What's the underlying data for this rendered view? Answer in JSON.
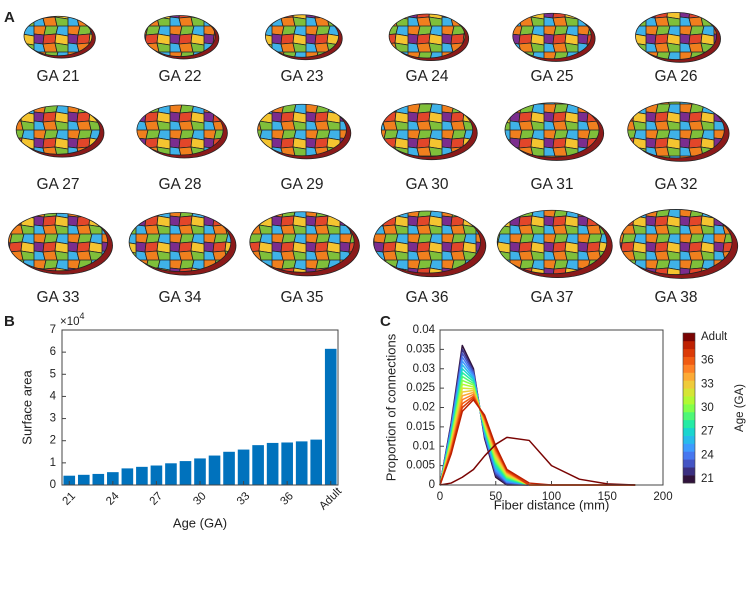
{
  "panel_a": {
    "label": "A",
    "captions": [
      "GA 21",
      "GA 22",
      "GA 23",
      "GA 24",
      "GA 25",
      "GA 26",
      "GA 27",
      "GA 28",
      "GA 29",
      "GA 30",
      "GA 31",
      "GA 32",
      "GA 33",
      "GA 34",
      "GA 35",
      "GA 36",
      "GA 37",
      "GA 38"
    ]
  },
  "chart_data": [
    {
      "type": "bar",
      "panel_label": "B",
      "x_label": "Age (GA)",
      "y_label": "Surface area",
      "y_multiplier": {
        "base": "×10",
        "exponent": "4"
      },
      "categories": [
        "21",
        null,
        null,
        "24",
        null,
        null,
        "27",
        null,
        null,
        "30",
        null,
        null,
        "33",
        null,
        null,
        "36",
        null,
        null,
        "Adult"
      ],
      "values": [
        0.42,
        0.46,
        0.5,
        0.58,
        0.75,
        0.82,
        0.88,
        0.98,
        1.08,
        1.2,
        1.33,
        1.5,
        1.6,
        1.8,
        1.9,
        1.92,
        1.97,
        2.05,
        6.15
      ],
      "color": "#0072bd",
      "ylim": [
        0,
        7
      ],
      "yticks": [
        0,
        1,
        2,
        3,
        4,
        5,
        6,
        7
      ]
    },
    {
      "type": "line",
      "panel_label": "C",
      "x_label": "Fiber distance (mm)",
      "y_label": "Proportion of connections",
      "colorbar_label": "Age (GA)",
      "x": [
        0,
        10,
        20,
        30,
        40,
        50,
        60,
        80,
        100,
        125,
        150,
        175
      ],
      "xlim": [
        0,
        200
      ],
      "xticks": [
        0,
        50,
        100,
        150,
        200
      ],
      "ylim": [
        0,
        0.04
      ],
      "yticks": [
        0,
        0.005,
        0.01,
        0.015,
        0.02,
        0.025,
        0.03,
        0.035,
        0.04
      ],
      "series": [
        {
          "name": "21",
          "color": "#30123b",
          "values": [
            0,
            0.016,
            0.036,
            0.03,
            0.012,
            0.002,
            0,
            0,
            0,
            0,
            0,
            0
          ]
        },
        {
          "name": null,
          "color": "#3b2f80",
          "values": [
            0,
            0.0155,
            0.035,
            0.0295,
            0.0124,
            0.0025,
            0.0002,
            0,
            0,
            0,
            0,
            0
          ]
        },
        {
          "name": null,
          "color": "#4454c4",
          "values": [
            0,
            0.0151,
            0.034,
            0.0291,
            0.0127,
            0.0029,
            0.0005,
            0,
            0,
            0,
            0,
            0
          ]
        },
        {
          "name": "24",
          "color": "#4777ef",
          "values": [
            0,
            0.0146,
            0.033,
            0.0286,
            0.0131,
            0.0034,
            0.0007,
            0,
            0,
            0,
            0,
            0
          ]
        },
        {
          "name": null,
          "color": "#3e9bfe",
          "values": [
            0,
            0.0141,
            0.032,
            0.0281,
            0.0134,
            0.0039,
            0.0009,
            0,
            0,
            0,
            0,
            0
          ]
        },
        {
          "name": null,
          "color": "#28bbec",
          "values": [
            0,
            0.0136,
            0.031,
            0.0276,
            0.0138,
            0.0044,
            0.0012,
            0,
            0,
            0,
            0,
            0
          ]
        },
        {
          "name": "27",
          "color": "#1ad5cf",
          "values": [
            0,
            0.0132,
            0.03,
            0.0272,
            0.0141,
            0.0048,
            0.0014,
            0,
            0,
            0,
            0,
            0
          ]
        },
        {
          "name": null,
          "color": "#25eba5",
          "values": [
            0,
            0.0127,
            0.029,
            0.0267,
            0.0145,
            0.0053,
            0.0016,
            0,
            0,
            0,
            0,
            0
          ]
        },
        {
          "name": null,
          "color": "#4ef777",
          "values": [
            0,
            0.0122,
            0.028,
            0.0262,
            0.0148,
            0.0058,
            0.0019,
            0,
            0,
            0,
            0,
            0
          ]
        },
        {
          "name": "30",
          "color": "#82ff4b",
          "values": [
            0,
            0.0118,
            0.027,
            0.0258,
            0.0152,
            0.0062,
            0.0021,
            0,
            0,
            0,
            0,
            0
          ]
        },
        {
          "name": null,
          "color": "#b1f934",
          "values": [
            0,
            0.0113,
            0.026,
            0.0253,
            0.0155,
            0.0067,
            0.0024,
            0,
            0,
            0,
            0,
            0
          ]
        },
        {
          "name": null,
          "color": "#d5e535",
          "values": [
            0,
            0.0108,
            0.025,
            0.0248,
            0.0159,
            0.0072,
            0.0026,
            0,
            0,
            0,
            0,
            0
          ]
        },
        {
          "name": "33",
          "color": "#efcb3a",
          "values": [
            0,
            0.0104,
            0.024,
            0.0244,
            0.0162,
            0.0076,
            0.0028,
            0,
            0,
            0,
            0,
            0
          ]
        },
        {
          "name": null,
          "color": "#fcaa35",
          "values": [
            0,
            0.0099,
            0.023,
            0.0239,
            0.0166,
            0.0081,
            0.0031,
            0,
            0,
            0,
            0,
            0
          ]
        },
        {
          "name": null,
          "color": "#fe8126",
          "values": [
            0,
            0.0094,
            0.022,
            0.0234,
            0.0169,
            0.0086,
            0.0033,
            0,
            0,
            0,
            0,
            0
          ]
        },
        {
          "name": "36",
          "color": "#f05b12",
          "values": [
            0,
            0.0089,
            0.021,
            0.0229,
            0.0173,
            0.0091,
            0.0035,
            0,
            0,
            0,
            0,
            0
          ]
        },
        {
          "name": null,
          "color": "#db3a07",
          "values": [
            0,
            0.0085,
            0.02,
            0.0225,
            0.0176,
            0.0095,
            0.0038,
            0,
            0,
            0,
            0,
            0
          ]
        },
        {
          "name": null,
          "color": "#be2102",
          "values": [
            0,
            0.008,
            0.019,
            0.022,
            0.018,
            0.01,
            0.004,
            0.0005,
            0,
            0,
            0,
            0
          ]
        },
        {
          "name": "Adult",
          "color": "#7a0403",
          "values": [
            0,
            0.0005,
            0.002,
            0.004,
            0.0075,
            0.0105,
            0.0123,
            0.0115,
            0.005,
            0.0015,
            0.0003,
            0
          ]
        }
      ]
    }
  ]
}
